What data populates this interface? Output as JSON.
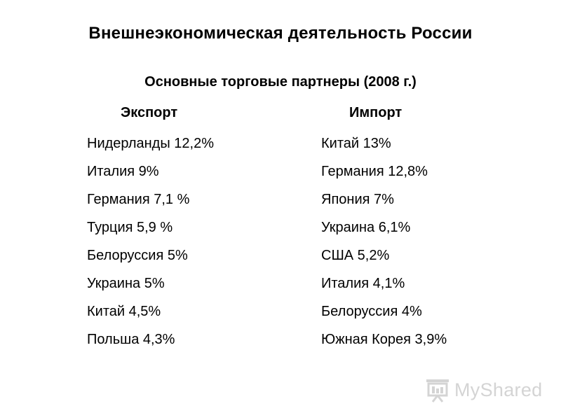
{
  "title": "Внешнеэкономическая деятельность России",
  "subtitle": "Основные торговые партнеры (2008 г.)",
  "export": {
    "header": "Экспорт",
    "items": [
      "Нидерланды 12,2%",
      "Италия 9%",
      "Германия 7,1 %",
      "Турция 5,9 %",
      "Белоруссия 5%",
      "Украина 5%",
      "Китай 4,5%",
      "Польша 4,3%"
    ]
  },
  "import": {
    "header": "Импорт",
    "items": [
      "Китай 13%",
      "Германия 12,8%",
      "Япония 7%",
      "Украина 6,1%",
      "США 5,2%",
      "Италия 4,1%",
      "Белоруссия 4%",
      "Южная Корея 3,9%"
    ]
  },
  "watermark": {
    "text": "MyShared",
    "icon": "presentation-board-icon",
    "color": "#d4d4d4"
  }
}
